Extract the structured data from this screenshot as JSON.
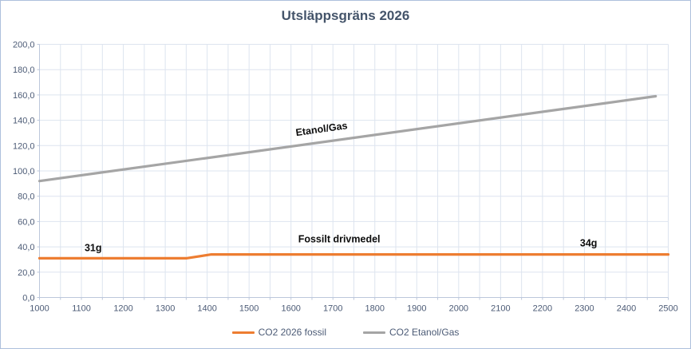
{
  "chart_data": {
    "type": "line",
    "title": "Utsläppsgräns 2026",
    "xlabel": "",
    "ylabel": "",
    "x_range": [
      1000,
      2500
    ],
    "y_range": [
      0,
      200
    ],
    "x_grid_step": 50,
    "y_grid_step": 20,
    "x_ticks": [
      "1000",
      "1100",
      "1200",
      "1300",
      "1400",
      "1500",
      "1600",
      "1700",
      "1800",
      "1900",
      "2000",
      "2100",
      "2200",
      "2300",
      "2400",
      "2500"
    ],
    "y_ticks": [
      "0,0",
      "20,0",
      "40,0",
      "60,0",
      "80,0",
      "100,0",
      "120,0",
      "140,0",
      "160,0",
      "180,0",
      "200,0"
    ],
    "grid": true,
    "legend_position": "bottom",
    "series": [
      {
        "name": "CO2 2026 fossil",
        "color": "#ED7D31",
        "points": [
          [
            1000,
            31
          ],
          [
            1350,
            31
          ],
          [
            1410,
            34
          ],
          [
            2500,
            34
          ]
        ]
      },
      {
        "name": "CO2 Etanol/Gas",
        "color": "#A5A5A5",
        "points": [
          [
            1000,
            92
          ],
          [
            2470,
            159
          ]
        ]
      }
    ],
    "annotations": [
      {
        "text": "31g",
        "x": 1128,
        "y": 39,
        "rotation": 0
      },
      {
        "text": "34g",
        "x": 2310,
        "y": 43,
        "rotation": 0
      },
      {
        "text": "Etanol/Gas",
        "x": 1673,
        "y": 133,
        "rotation": -8
      },
      {
        "text": "Fossilt drivmedel",
        "x": 1715,
        "y": 46,
        "rotation": 0
      }
    ]
  },
  "colors": {
    "title_text": "#44546A",
    "axis_text": "#4c5b76",
    "gridline": "#dde4ef",
    "axis_line": "#bcc7db",
    "border": "#aec0dd",
    "background": "#ffffff"
  }
}
